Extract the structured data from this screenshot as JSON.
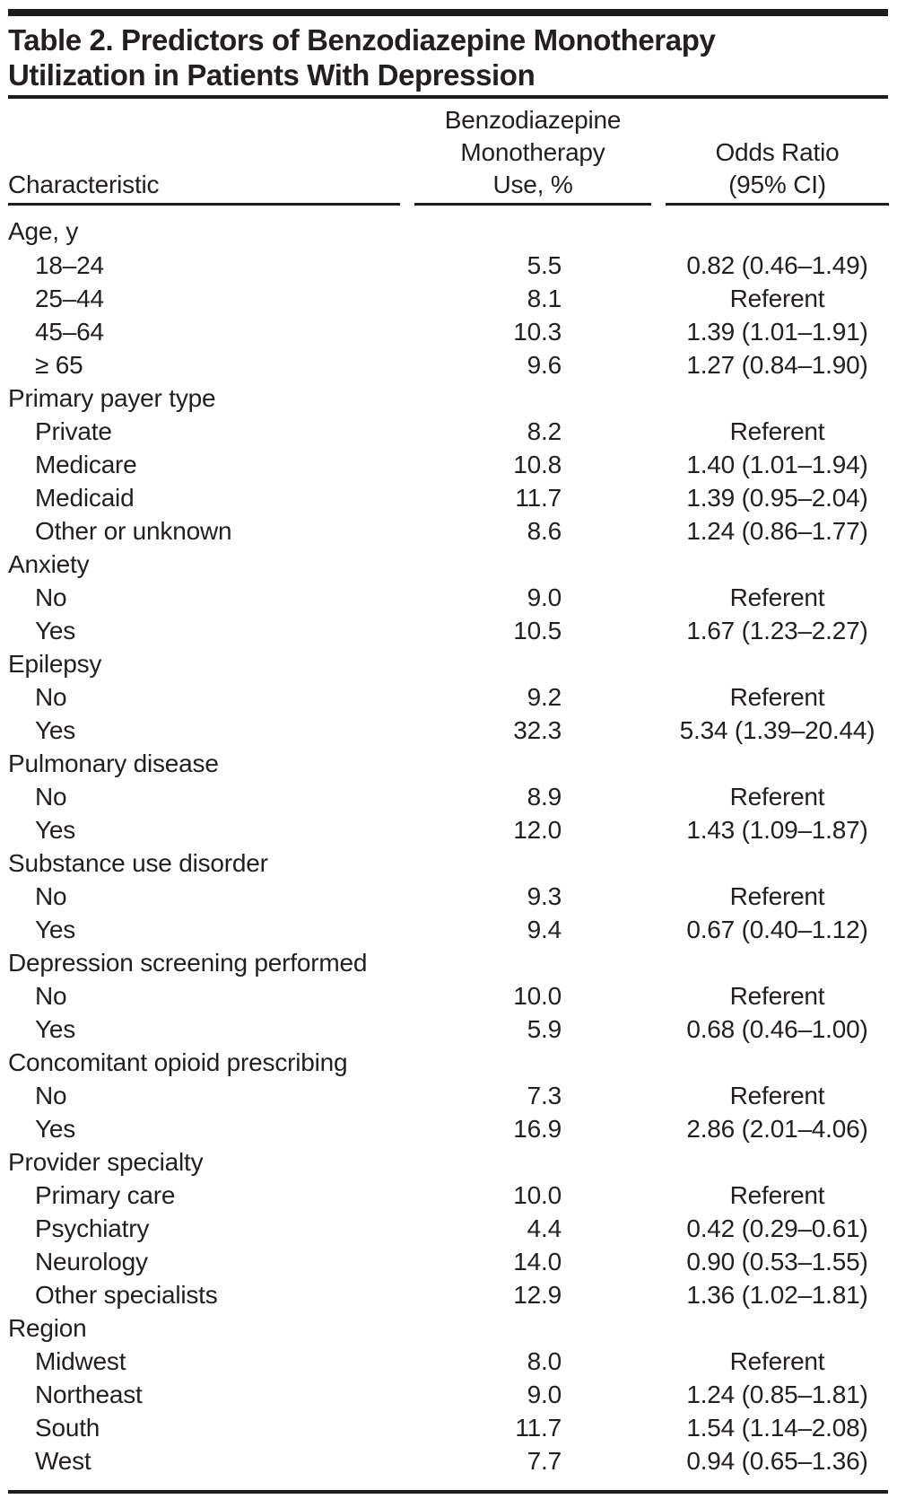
{
  "title_lines": [
    "Table 2. Predictors of Benzodiazepine Monotherapy",
    "Utilization in Patients With Depression"
  ],
  "columns": {
    "characteristic": "Characteristic",
    "use_lines": [
      "Benzodiazepine",
      "Monotherapy",
      "Use, %"
    ],
    "or_lines": [
      "Odds Ratio",
      "(95% CI)"
    ]
  },
  "rule_color": "#1c1c1c",
  "text_color": "#231f20",
  "groups": [
    {
      "label": "Age, y",
      "rows": [
        {
          "label": "18–24",
          "use": "5.5",
          "or": "0.82 (0.46–1.49)"
        },
        {
          "label": "25–44",
          "use": "8.1",
          "or": "Referent"
        },
        {
          "label": "45–64",
          "use": "10.3",
          "or": "1.39 (1.01–1.91)"
        },
        {
          "label": "≥ 65",
          "use": "9.6",
          "or": "1.27 (0.84–1.90)"
        }
      ]
    },
    {
      "label": "Primary payer type",
      "rows": [
        {
          "label": "Private",
          "use": "8.2",
          "or": "Referent"
        },
        {
          "label": "Medicare",
          "use": "10.8",
          "or": "1.40 (1.01–1.94)"
        },
        {
          "label": "Medicaid",
          "use": "11.7",
          "or": "1.39 (0.95–2.04)"
        },
        {
          "label": "Other or unknown",
          "use": "8.6",
          "or": "1.24 (0.86–1.77)"
        }
      ]
    },
    {
      "label": "Anxiety",
      "rows": [
        {
          "label": "No",
          "use": "9.0",
          "or": "Referent"
        },
        {
          "label": "Yes",
          "use": "10.5",
          "or": "1.67 (1.23–2.27)"
        }
      ]
    },
    {
      "label": "Epilepsy",
      "rows": [
        {
          "label": "No",
          "use": "9.2",
          "or": "Referent"
        },
        {
          "label": "Yes",
          "use": "32.3",
          "or": "5.34 (1.39–20.44)"
        }
      ]
    },
    {
      "label": "Pulmonary disease",
      "rows": [
        {
          "label": "No",
          "use": "8.9",
          "or": "Referent"
        },
        {
          "label": "Yes",
          "use": "12.0",
          "or": "1.43 (1.09–1.87)"
        }
      ]
    },
    {
      "label": "Substance use disorder",
      "rows": [
        {
          "label": "No",
          "use": "9.3",
          "or": "Referent"
        },
        {
          "label": "Yes",
          "use": "9.4",
          "or": "0.67 (0.40–1.12)"
        }
      ]
    },
    {
      "label": "Depression screening performed",
      "rows": [
        {
          "label": "No",
          "use": "10.0",
          "or": "Referent"
        },
        {
          "label": "Yes",
          "use": "5.9",
          "or": "0.68 (0.46–1.00)"
        }
      ]
    },
    {
      "label": "Concomitant opioid prescribing",
      "rows": [
        {
          "label": "No",
          "use": "7.3",
          "or": "Referent"
        },
        {
          "label": "Yes",
          "use": "16.9",
          "or": "2.86 (2.01–4.06)"
        }
      ]
    },
    {
      "label": "Provider specialty",
      "rows": [
        {
          "label": "Primary care",
          "use": "10.0",
          "or": "Referent"
        },
        {
          "label": "Psychiatry",
          "use": "4.4",
          "or": "0.42 (0.29–0.61)"
        },
        {
          "label": "Neurology",
          "use": "14.0",
          "or": "0.90 (0.53–1.55)"
        },
        {
          "label": "Other specialists",
          "use": "12.9",
          "or": "1.36 (1.02–1.81)"
        }
      ]
    },
    {
      "label": "Region",
      "rows": [
        {
          "label": "Midwest",
          "use": "8.0",
          "or": "Referent"
        },
        {
          "label": "Northeast",
          "use": "9.0",
          "or": "1.24 (0.85–1.81)"
        },
        {
          "label": "South",
          "use": "11.7",
          "or": "1.54 (1.14–2.08)"
        },
        {
          "label": "West",
          "use": "7.7",
          "or": "0.94 (0.65–1.36)"
        }
      ]
    }
  ]
}
